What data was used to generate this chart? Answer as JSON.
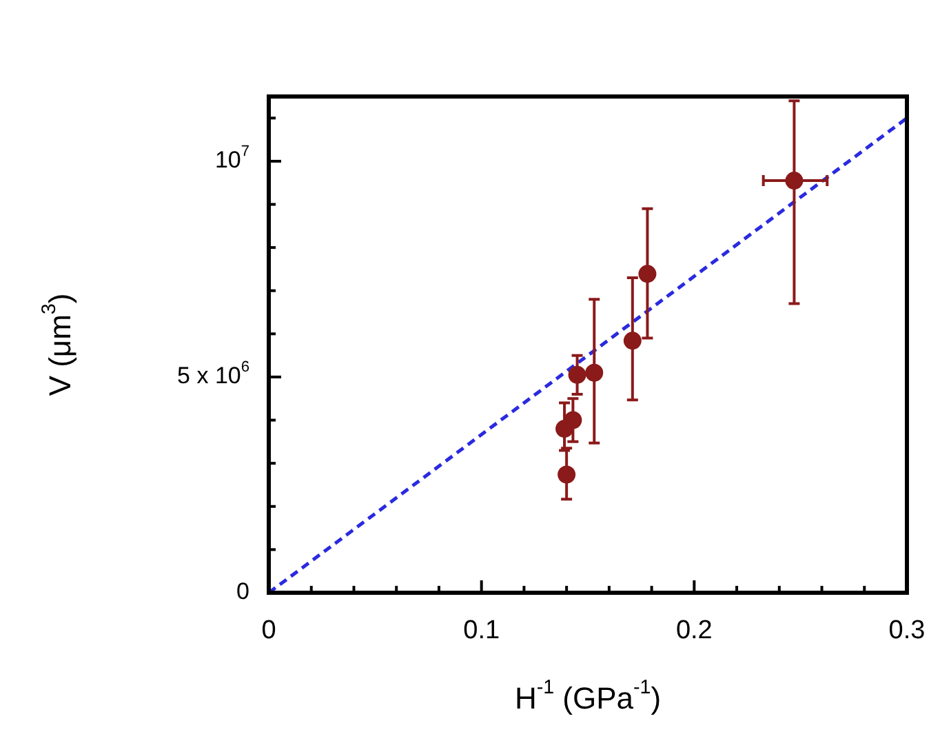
{
  "chart_data": {
    "type": "scatter",
    "xlabel": "H$^{-1}$ (GPa$^{-1}$)",
    "ylabel": "V (μm$^{3}$)",
    "xlim": [
      0,
      0.3
    ],
    "ylim": [
      0,
      11500000
    ],
    "xticks": [
      0,
      {
        "value": 0.02,
        "label": null
      },
      {
        "value": 0.04,
        "label": null
      },
      {
        "value": 0.06,
        "label": null
      },
      {
        "value": 0.08,
        "label": null
      },
      0.1,
      {
        "value": 0.12,
        "label": null
      },
      {
        "value": 0.14,
        "label": null
      },
      {
        "value": 0.16,
        "label": null
      },
      {
        "value": 0.18,
        "label": null
      },
      0.2,
      {
        "value": 0.22,
        "label": null
      },
      {
        "value": 0.24,
        "label": null
      },
      {
        "value": 0.26,
        "label": null
      },
      {
        "value": 0.28,
        "label": null
      },
      0.3
    ],
    "yticks": [
      0,
      {
        "value": 1000000,
        "label": null
      },
      {
        "value": 2000000,
        "label": null
      },
      {
        "value": 3000000,
        "label": null
      },
      {
        "value": 4000000,
        "label": null
      },
      {
        "value": 5000000,
        "label": "5 x 10$^{6}$"
      },
      {
        "value": 6000000,
        "label": null
      },
      {
        "value": 7000000,
        "label": null
      },
      {
        "value": 8000000,
        "label": null
      },
      {
        "value": 9000000,
        "label": null
      },
      {
        "value": 10000000,
        "label": "10$^{7}$"
      },
      {
        "value": 11000000,
        "label": null
      }
    ],
    "grid": false,
    "legend": false,
    "series": [
      {
        "color": "#8b1a1a",
        "marker": "circle",
        "x": [
          0.14,
          0.139,
          0.143,
          0.145,
          0.153,
          0.171,
          0.178,
          0.247
        ],
        "values": [
          2740000,
          3800000,
          4000000,
          5050000,
          5100000,
          5840000,
          7390000,
          9550000
        ],
        "errors": [
          [
            2170000,
            3350000
          ],
          [
            3300000,
            4400000
          ],
          [
            3500000,
            4500000
          ],
          [
            4600000,
            5500000
          ],
          [
            3470000,
            6800000
          ],
          [
            4470000,
            7300000
          ],
          [
            5900000,
            8900000
          ],
          [
            6700000,
            11400000
          ]
        ],
        "xerrors": [
          null,
          null,
          null,
          null,
          null,
          null,
          null,
          [
            0.2325,
            0.2625
          ]
        ]
      },
      {
        "type": "line",
        "color": "#2a2ae0",
        "marker": "none",
        "line_style": "dashed",
        "x": [
          0,
          0.3
        ],
        "values": [
          0,
          11000000
        ]
      }
    ]
  }
}
